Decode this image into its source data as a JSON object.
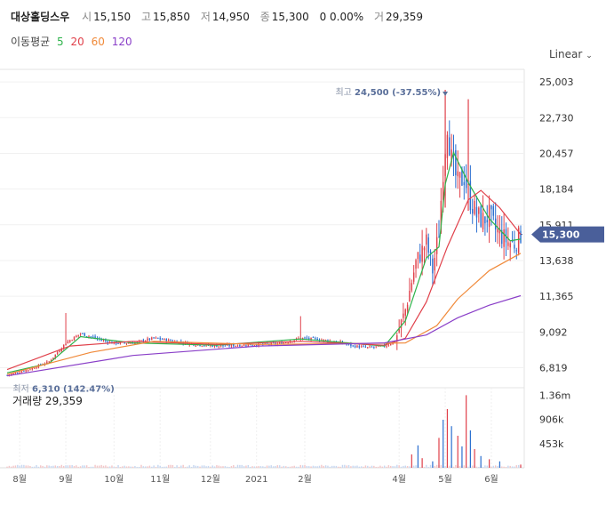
{
  "header": {
    "name": "대상홀딩스우",
    "open_label": "시",
    "open": "15,150",
    "high_label": "고",
    "high": "15,850",
    "low_label": "저",
    "low": "14,950",
    "close_label": "종",
    "close": "15,300",
    "change": "0 0.00%",
    "volume_label": "거",
    "volume": "29,359"
  },
  "ma": {
    "label": "이동평균",
    "periods": [
      {
        "text": "5",
        "color": "#2db34a"
      },
      {
        "text": "20",
        "color": "#e0404a"
      },
      {
        "text": "60",
        "color": "#f08a3a"
      },
      {
        "text": "120",
        "color": "#8a3fc8"
      }
    ]
  },
  "scale_selector": "Linear",
  "volume_title": "거래량 29,359",
  "colors": {
    "up": "#e0404a",
    "down": "#2b6fd0",
    "current_badge": "#4a5f9a"
  },
  "chart_data": {
    "type": "candlestick",
    "price_ticks": [
      "25,003",
      "22,730",
      "20,457",
      "18,184",
      "15,911",
      "13,638",
      "11,365",
      "9,092",
      "6,819"
    ],
    "price_tick_values": [
      25003,
      22730,
      20457,
      18184,
      15911,
      13638,
      11365,
      9092,
      6819
    ],
    "ylim": [
      6000,
      25800
    ],
    "volume_ticks": [
      "1.36m",
      "906k",
      "453k"
    ],
    "volume_tick_values": [
      1360000,
      906000,
      453000
    ],
    "x_labels": [
      "8월",
      "9월",
      "10월",
      "11월",
      "12월",
      "2021",
      "2월",
      "4월",
      "5월",
      "6월"
    ],
    "x_label_index": [
      6,
      28,
      51,
      73,
      97,
      119,
      142,
      187,
      209,
      231
    ],
    "num_sessions": 246,
    "max_annotation": {
      "label": "최고",
      "value": "24,500",
      "pct": "(-37.55%)",
      "index": 209,
      "price": 24500
    },
    "min_annotation": {
      "label": "최저",
      "value": "6,310",
      "pct": "(142.47%)",
      "index": 1,
      "price": 6310
    },
    "current_price": {
      "text": "15,300",
      "value": 15300
    },
    "closes": [
      [
        0,
        6350
      ],
      [
        10,
        6700
      ],
      [
        20,
        7200
      ],
      [
        28,
        8400
      ],
      [
        35,
        9000
      ],
      [
        42,
        8700
      ],
      [
        50,
        8400
      ],
      [
        60,
        8400
      ],
      [
        70,
        8700
      ],
      [
        80,
        8500
      ],
      [
        90,
        8300
      ],
      [
        100,
        8200
      ],
      [
        110,
        8250
      ],
      [
        120,
        8300
      ],
      [
        130,
        8350
      ],
      [
        140,
        8700
      ],
      [
        150,
        8600
      ],
      [
        160,
        8400
      ],
      [
        165,
        8200
      ],
      [
        172,
        8100
      ],
      [
        180,
        8200
      ],
      [
        185,
        8500
      ],
      [
        190,
        10500
      ],
      [
        195,
        13500
      ],
      [
        200,
        14800
      ],
      [
        203,
        13000
      ],
      [
        206,
        15500
      ],
      [
        208,
        19500
      ],
      [
        210,
        22500
      ],
      [
        212,
        20000
      ],
      [
        215,
        18500
      ],
      [
        218,
        19000
      ],
      [
        221,
        17500
      ],
      [
        224,
        16500
      ],
      [
        227,
        16200
      ],
      [
        230,
        16500
      ],
      [
        233,
        15600
      ],
      [
        236,
        15200
      ],
      [
        239,
        14800
      ],
      [
        242,
        14700
      ],
      [
        245,
        15300
      ]
    ],
    "ma_curves": {
      "ma5": [
        [
          0,
          6500
        ],
        [
          20,
          7100
        ],
        [
          35,
          8800
        ],
        [
          60,
          8400
        ],
        [
          100,
          8250
        ],
        [
          140,
          8650
        ],
        [
          180,
          8200
        ],
        [
          190,
          9800
        ],
        [
          200,
          13800
        ],
        [
          206,
          14500
        ],
        [
          209,
          18500
        ],
        [
          213,
          20500
        ],
        [
          220,
          18600
        ],
        [
          230,
          16300
        ],
        [
          240,
          14900
        ],
        [
          245,
          15000
        ]
      ],
      "ma20": [
        [
          0,
          6700
        ],
        [
          30,
          8200
        ],
        [
          60,
          8500
        ],
        [
          100,
          8300
        ],
        [
          140,
          8500
        ],
        [
          180,
          8250
        ],
        [
          190,
          8700
        ],
        [
          200,
          11000
        ],
        [
          210,
          14500
        ],
        [
          220,
          17500
        ],
        [
          226,
          18100
        ],
        [
          235,
          17000
        ],
        [
          245,
          15300
        ]
      ],
      "ma60": [
        [
          0,
          6400
        ],
        [
          40,
          7800
        ],
        [
          70,
          8500
        ],
        [
          120,
          8300
        ],
        [
          160,
          8350
        ],
        [
          190,
          8400
        ],
        [
          205,
          9500
        ],
        [
          215,
          11200
        ],
        [
          230,
          13000
        ],
        [
          245,
          14100
        ]
      ],
      "ma120": [
        [
          0,
          6300
        ],
        [
          60,
          7600
        ],
        [
          120,
          8200
        ],
        [
          180,
          8400
        ],
        [
          200,
          8900
        ],
        [
          215,
          10000
        ],
        [
          230,
          10800
        ],
        [
          245,
          11400
        ]
      ]
    },
    "volume_spikes": [
      [
        193,
        250000
      ],
      [
        196,
        420000
      ],
      [
        198,
        180000
      ],
      [
        203,
        120000
      ],
      [
        206,
        560000
      ],
      [
        208,
        900000
      ],
      [
        210,
        1100000
      ],
      [
        212,
        780000
      ],
      [
        215,
        600000
      ],
      [
        217,
        400000
      ],
      [
        219,
        1360000
      ],
      [
        221,
        700000
      ],
      [
        223,
        350000
      ],
      [
        226,
        220000
      ],
      [
        230,
        160000
      ],
      [
        235,
        120000
      ],
      [
        245,
        60000
      ]
    ]
  }
}
